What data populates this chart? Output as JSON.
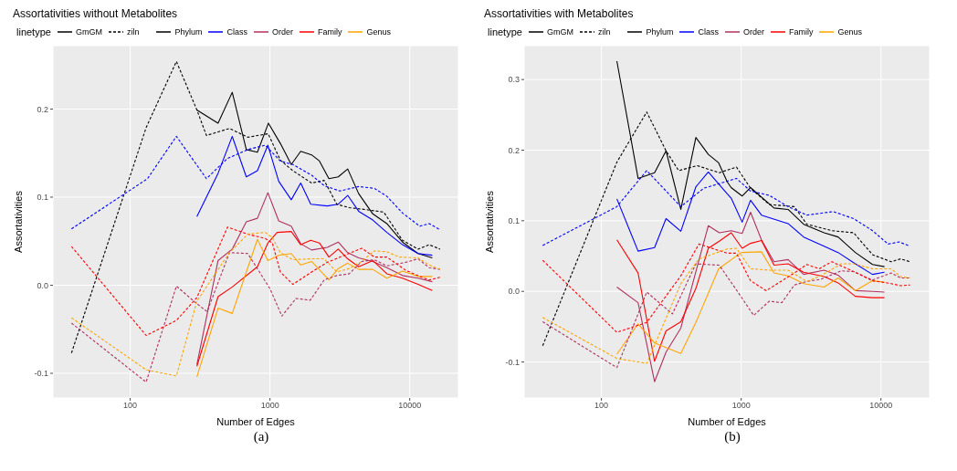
{
  "chart_data": [
    {
      "type": "line",
      "title": "Assortativities without Metabolites",
      "xlabel": "Number of Edges",
      "ylabel": "Assortativities",
      "legend_title": "linetype",
      "legend": "top left",
      "grid": true,
      "log": "x",
      "xlim": [
        28,
        22300
      ],
      "xticks": [
        100,
        1000,
        10000
      ],
      "ylim": [
        -0.128,
        0.272
      ],
      "yticks": [
        -0.1,
        {
          "value": 0,
          "label": "0.0"
        },
        0.1,
        0.2
      ],
      "annotations": [
        "GmGM",
        "ziln",
        "(a)"
      ],
      "series": [
        {
          "name": "Phylum",
          "line_style": "solid",
          "color": "#000000",
          "x": [
            300,
            425,
            537,
            677,
            813,
            975,
            1186,
            1420,
            1659,
            1986,
            2260,
            2640,
            3080,
            3600,
            4310,
            5440,
            6860,
            8875,
            11476,
            14500
          ],
          "values": [
            0.199,
            0.184,
            0.219,
            0.154,
            0.151,
            0.184,
            0.161,
            0.137,
            0.152,
            0.148,
            0.141,
            0.121,
            0.123,
            0.132,
            0.104,
            0.081,
            0.07,
            0.049,
            0.036,
            0.031
          ]
        },
        {
          "name": "Class",
          "line_style": "solid",
          "color": "#0000ff",
          "x": [
            300,
            425,
            537,
            677,
            813,
            966,
            1155,
            1420,
            1659,
            1958,
            2570,
            3080,
            3600,
            4310,
            5440,
            6860,
            8875,
            11476,
            14500
          ],
          "values": [
            0.078,
            0.127,
            0.169,
            0.123,
            0.13,
            0.159,
            0.118,
            0.097,
            0.116,
            0.092,
            0.09,
            0.092,
            0.102,
            0.084,
            0.074,
            0.06,
            0.046,
            0.036,
            0.034
          ]
        },
        {
          "name": "Order",
          "line_style": "solid",
          "color": "#b03060",
          "x": [
            300,
            425,
            537,
            677,
            813,
            966,
            1155,
            1420,
            1659,
            1986,
            2570,
            3080,
            3600,
            4310,
            5440,
            6860,
            8875,
            11476,
            14500
          ],
          "values": [
            -0.09,
            0.028,
            0.041,
            0.072,
            0.076,
            0.105,
            0.073,
            0.067,
            0.047,
            0.04,
            0.043,
            0.049,
            0.037,
            0.031,
            0.027,
            0.02,
            0.011,
            0.008,
            0.004
          ]
        },
        {
          "name": "Family",
          "line_style": "solid",
          "color": "#ff0000",
          "x": [
            300,
            425,
            537,
            813,
            966,
            1126,
            1420,
            1659,
            1958,
            2260,
            2640,
            3080,
            3600,
            4310,
            5440,
            6860,
            8875,
            11476,
            14500
          ],
          "values": [
            -0.092,
            -0.013,
            -0.002,
            0.021,
            0.048,
            0.06,
            0.061,
            0.046,
            0.051,
            0.048,
            0.032,
            0.041,
            0.03,
            0.021,
            0.028,
            0.013,
            0.008,
            0.001,
            -0.006
          ]
        },
        {
          "name": "Genus",
          "line_style": "solid",
          "color": "#ffa500",
          "x": [
            300,
            425,
            537,
            813,
            966,
            1155,
            1420,
            1659,
            1986,
            2640,
            3080,
            3600,
            4310,
            5440,
            6860,
            8875,
            11476,
            14500
          ],
          "values": [
            -0.104,
            -0.026,
            -0.032,
            0.052,
            0.028,
            0.034,
            0.036,
            0.023,
            0.027,
            0.006,
            0.019,
            0.025,
            0.018,
            0.018,
            0.008,
            0.016,
            0.01,
            0.01
          ]
        },
        {
          "line_style": "dashed",
          "color": "#000000",
          "x": [
            38,
            130,
            214,
            300,
            351,
            513,
            694,
            970,
            1186,
            1458,
            1986,
            2443,
            3006,
            3690,
            4784,
            6519,
            8875,
            11476,
            13770,
            16480
          ],
          "values": [
            -0.077,
            0.179,
            0.254,
            0.199,
            0.17,
            0.178,
            0.168,
            0.172,
            0.142,
            0.13,
            0.116,
            0.119,
            0.092,
            0.088,
            0.086,
            0.083,
            0.051,
            0.041,
            0.046,
            0.041
          ]
        },
        {
          "line_style": "dashed",
          "color": "#0000ff",
          "x": [
            38,
            133,
            214,
            351,
            497,
            694,
            924,
            1186,
            1458,
            1986,
            2443,
            3160,
            4310,
            5580,
            6860,
            8875,
            11800,
            13770,
            16480
          ],
          "values": [
            0.064,
            0.121,
            0.169,
            0.121,
            0.144,
            0.154,
            0.159,
            0.141,
            0.137,
            0.125,
            0.113,
            0.107,
            0.112,
            0.11,
            0.101,
            0.082,
            0.067,
            0.07,
            0.063
          ]
        },
        {
          "line_style": "dashed",
          "color": "#b03060",
          "x": [
            38,
            130,
            214,
            300,
            355,
            513,
            694,
            1000,
            1217,
            1535,
            1940,
            2443,
            3006,
            3690,
            4540,
            5580,
            6860,
            9350,
            11476,
            13770,
            16480
          ],
          "values": [
            -0.043,
            -0.11,
            -0.001,
            -0.021,
            -0.03,
            0.037,
            0.036,
            -0.004,
            -0.035,
            -0.015,
            -0.017,
            0.006,
            0.011,
            0.013,
            0.027,
            0.029,
            0.022,
            0.026,
            0.03,
            0.02,
            0.018
          ]
        },
        {
          "line_style": "dashed",
          "color": "#ff0000",
          "x": [
            38,
            130,
            214,
            300,
            497,
            694,
            924,
            1040,
            1186,
            1458,
            1986,
            2570,
            4540,
            5580,
            6860,
            9350,
            11800,
            13770,
            16480
          ],
          "values": [
            0.044,
            -0.057,
            -0.04,
            -0.014,
            0.066,
            0.058,
            0.053,
            0.048,
            0.015,
            0.001,
            0.015,
            0.026,
            0.042,
            0.032,
            0.032,
            0.017,
            0.01,
            0.006,
            0.009
          ]
        },
        {
          "line_style": "dashed",
          "color": "#ffa500",
          "x": [
            38,
            130,
            214,
            300,
            513,
            694,
            924,
            1040,
            1186,
            1458,
            1986,
            2443,
            3006,
            3690,
            4540,
            5580,
            6860,
            8410,
            11476,
            13770,
            16480
          ],
          "values": [
            -0.037,
            -0.096,
            -0.103,
            -0.018,
            0.037,
            0.058,
            0.06,
            0.054,
            0.037,
            0.029,
            0.03,
            0.03,
            0.015,
            0.019,
            0.027,
            0.039,
            0.038,
            0.032,
            0.031,
            0.023,
            0.018
          ]
        }
      ]
    },
    {
      "type": "line",
      "title": "Assortativities with Metabolites",
      "xlabel": "Number of Edges",
      "ylabel": "Assortativities",
      "legend_title": "linetype",
      "legend": "top left",
      "grid": true,
      "log": "x",
      "xlim": [
        28,
        22300
      ],
      "xticks": [
        100,
        1000,
        10000
      ],
      "ylim": [
        -0.151,
        0.348
      ],
      "yticks": [
        -0.1,
        {
          "value": 0,
          "label": "0.0"
        },
        0.1,
        0.2,
        0.3
      ],
      "annotations": [
        "GmGM",
        "ziln",
        "(b)"
      ],
      "series": [
        {
          "name": "Phylum",
          "line_style": "solid",
          "color": "#000000",
          "x": [
            129,
            183,
            240,
            290,
            370,
            474,
            582,
            690,
            795,
            848,
            1016,
            1167,
            1718,
            2166,
            2800,
            3920,
            4940,
            6560,
            8700,
            10600
          ],
          "values": [
            0.326,
            0.16,
            0.168,
            0.199,
            0.116,
            0.218,
            0.194,
            0.182,
            0.155,
            0.147,
            0.135,
            0.147,
            0.118,
            0.116,
            0.095,
            0.083,
            0.077,
            0.055,
            0.038,
            0.035
          ]
        },
        {
          "name": "Class",
          "line_style": "solid",
          "color": "#0000ff",
          "x": [
            129,
            183,
            240,
            290,
            370,
            474,
            582,
            795,
            848,
            1016,
            1167,
            1397,
            2166,
            2800,
            3920,
            4940,
            6560,
            8700,
            10600
          ],
          "values": [
            0.131,
            0.057,
            0.062,
            0.103,
            0.085,
            0.148,
            0.169,
            0.138,
            0.132,
            0.098,
            0.129,
            0.108,
            0.096,
            0.077,
            0.064,
            0.055,
            0.039,
            0.024,
            0.027
          ]
        },
        {
          "name": "Order",
          "line_style": "solid",
          "color": "#b03060",
          "x": [
            129,
            183,
            240,
            290,
            370,
            474,
            582,
            697,
            848,
            1016,
            1167,
            1397,
            1718,
            2166,
            2800,
            3920,
            4940,
            6560,
            8700,
            10600
          ],
          "values": [
            0.006,
            -0.016,
            -0.128,
            -0.086,
            -0.052,
            0.028,
            0.093,
            0.083,
            0.086,
            0.082,
            0.112,
            0.073,
            0.042,
            0.045,
            0.024,
            0.03,
            0.023,
            0.001,
            0,
            -0.001
          ]
        },
        {
          "name": "Family",
          "line_style": "solid",
          "color": "#ff0000",
          "x": [
            129,
            183,
            240,
            290,
            370,
            474,
            582,
            697,
            848,
            1016,
            1167,
            1397,
            1718,
            2166,
            2800,
            3920,
            4940,
            6560,
            8700,
            10600
          ],
          "values": [
            0.073,
            0.026,
            -0.099,
            -0.056,
            -0.043,
            0.004,
            0.061,
            0.071,
            0.083,
            0.061,
            0.068,
            0.072,
            0.037,
            0.039,
            0.027,
            0.021,
            0.012,
            -0.007,
            -0.009,
            -0.009
          ]
        },
        {
          "name": "Genus",
          "line_style": "solid",
          "color": "#ffa500",
          "x": [
            129,
            183,
            240,
            370,
            474,
            690,
            1000,
            1397,
            1718,
            2166,
            2800,
            3920,
            4940,
            6560,
            8700,
            10600
          ],
          "values": [
            -0.089,
            -0.046,
            -0.073,
            -0.088,
            -0.044,
            0.032,
            0.055,
            0.056,
            0.026,
            0.022,
            0.011,
            0.006,
            0.019,
            0.001,
            0.015,
            0.013
          ]
        },
        {
          "line_style": "dashed",
          "color": "#000000",
          "x": [
            38,
            129,
            211,
            290,
            357,
            486,
            697,
            925,
            1167,
            1589,
            2400,
            2950,
            4450,
            6380,
            8700,
            11850,
            13830,
            16150
          ],
          "values": [
            -0.077,
            0.183,
            0.254,
            0.199,
            0.171,
            0.178,
            0.168,
            0.176,
            0.146,
            0.123,
            0.12,
            0.095,
            0.086,
            0.083,
            0.052,
            0.042,
            0.046,
            0.042
          ]
        },
        {
          "line_style": "dashed",
          "color": "#0000ff",
          "x": [
            38,
            129,
            211,
            370,
            540,
            795,
            925,
            1167,
            1589,
            2166,
            2950,
            4560,
            6380,
            8700,
            11260,
            13460,
            16150
          ],
          "values": [
            0.065,
            0.12,
            0.171,
            0.12,
            0.146,
            0.156,
            0.16,
            0.142,
            0.136,
            0.12,
            0.108,
            0.113,
            0.103,
            0.086,
            0.067,
            0.07,
            0.064
          ]
        },
        {
          "line_style": "dashed",
          "color": "#b03060",
          "x": [
            38,
            129,
            211,
            322,
            474,
            697,
            925,
            1229,
            1589,
            1954,
            2400,
            2950,
            3700,
            5200,
            6380,
            8700,
            11850,
            13830,
            16150
          ],
          "values": [
            -0.043,
            -0.108,
            -0.001,
            -0.032,
            0.039,
            0.037,
            0.002,
            -0.034,
            -0.014,
            -0.016,
            0.009,
            0.014,
            0.017,
            0.029,
            0.028,
            0.016,
            0.026,
            0.019,
            0.019
          ]
        },
        {
          "line_style": "dashed",
          "color": "#ff0000",
          "x": [
            38,
            129,
            211,
            370,
            499,
            795,
            925,
            1167,
            1510,
            2400,
            2950,
            3620,
            4450,
            6380,
            8700,
            11850,
            13830,
            16150
          ],
          "values": [
            0.044,
            -0.058,
            -0.044,
            0.022,
            0.067,
            0.054,
            0.054,
            0.015,
            0.001,
            0.026,
            0.038,
            0.032,
            0.042,
            0.028,
            0.015,
            0.011,
            0.008,
            0.009
          ]
        },
        {
          "line_style": "dashed",
          "color": "#ffa500",
          "x": [
            38,
            129,
            211,
            370,
            499,
            795,
            925,
            1167,
            1589,
            2166,
            2950,
            3700,
            5200,
            6380,
            8700,
            11850,
            13830,
            16150
          ],
          "values": [
            -0.037,
            -0.095,
            -0.102,
            0.011,
            0.046,
            0.06,
            0.061,
            0.032,
            0.03,
            0.03,
            0.014,
            0.022,
            0.039,
            0.039,
            0.032,
            0.032,
            0.021,
            0.019
          ]
        }
      ]
    }
  ]
}
